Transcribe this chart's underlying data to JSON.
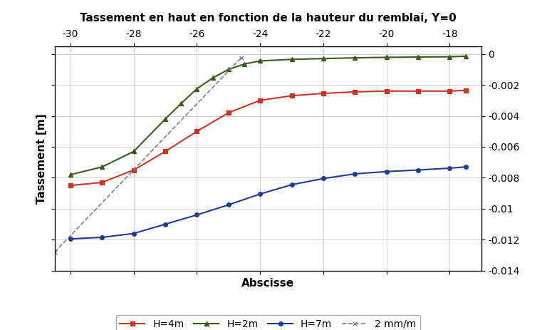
{
  "title": "Tassement en haut en fonction de la hauteur du remblai, Y=0",
  "xlabel": "Abscisse",
  "ylabel": "Tassement [m]",
  "xlim": [
    -30.5,
    -17.0
  ],
  "ylim": [
    -0.014,
    0.0005
  ],
  "top_xticks": [
    -30,
    -28,
    -26,
    -24,
    -22,
    -20,
    -18
  ],
  "right_yticks": [
    0,
    -0.002,
    -0.004,
    -0.006,
    -0.008,
    -0.01,
    -0.012,
    -0.014
  ],
  "background_color": "#ffffff",
  "grid_color": "#d0d0d0",
  "H4m": {
    "x": [
      -30,
      -29,
      -28,
      -27,
      -26,
      -25,
      -24,
      -23,
      -22,
      -21,
      -20,
      -19,
      -18,
      -17.5
    ],
    "y": [
      -0.0085,
      -0.0083,
      -0.0075,
      -0.0063,
      -0.005,
      -0.0038,
      -0.003,
      -0.0027,
      -0.00255,
      -0.00245,
      -0.0024,
      -0.0024,
      -0.0024,
      -0.00235
    ],
    "color": "#c0392b",
    "marker": "s",
    "markersize": 4,
    "linewidth": 1.5,
    "label": "H=4m"
  },
  "H2m": {
    "x": [
      -30,
      -29,
      -28,
      -27,
      -26.5,
      -26,
      -25.5,
      -25,
      -24.5,
      -24,
      -23,
      -22,
      -21,
      -20,
      -19,
      -18,
      -17.5
    ],
    "y": [
      -0.0078,
      -0.0073,
      -0.0063,
      -0.0042,
      -0.0032,
      -0.00225,
      -0.00155,
      -0.001,
      -0.00065,
      -0.00045,
      -0.00035,
      -0.0003,
      -0.00025,
      -0.00022,
      -0.0002,
      -0.00018,
      -0.00015
    ],
    "color": "#3d5a1e",
    "marker": "^",
    "markersize": 4,
    "linewidth": 1.5,
    "label": "H=2m"
  },
  "H7m": {
    "x": [
      -30,
      -29,
      -28,
      -27,
      -26,
      -25,
      -24,
      -23,
      -22,
      -21,
      -20,
      -19,
      -18,
      -17.5
    ],
    "y": [
      -0.01195,
      -0.01185,
      -0.0116,
      -0.011,
      -0.0104,
      -0.00975,
      -0.00905,
      -0.00845,
      -0.00805,
      -0.00775,
      -0.0076,
      -0.0075,
      -0.00738,
      -0.0073
    ],
    "color": "#1f3d8a",
    "marker": "o",
    "markersize": 4,
    "linewidth": 1.5,
    "label": "H=7m"
  },
  "dashed": {
    "x": [
      -30.5,
      -24.6
    ],
    "y": [
      -0.0128,
      -0.00025
    ],
    "color": "#808080",
    "linestyle": "--",
    "linewidth": 1.2,
    "label": "2 mm/m",
    "marker": "x",
    "markersize": 5
  }
}
